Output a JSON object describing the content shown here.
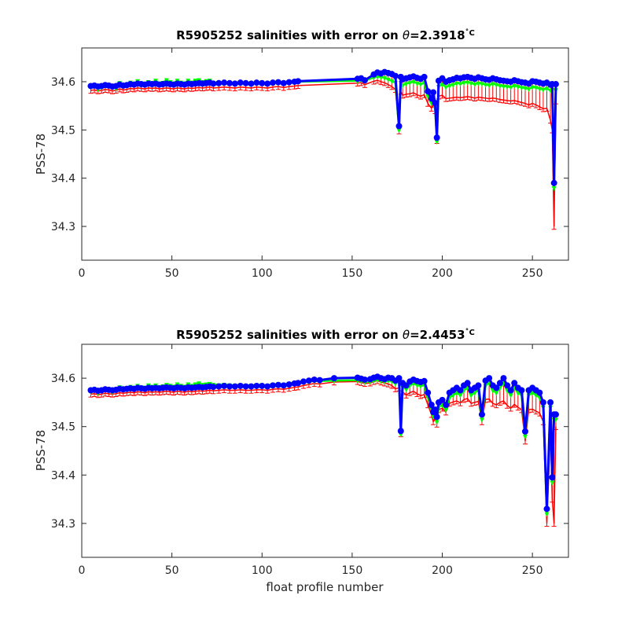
{
  "chart_data": [
    {
      "type": "line",
      "title": "R5905252 salinities with error on θ=2.3918˚C",
      "title_prefix": "R5905252 salinities with error on ",
      "title_theta": "θ",
      "title_suffix": "=2.3918",
      "title_unit": "˚C",
      "xlabel": "",
      "ylabel": "PSS-78",
      "xlim": [
        0,
        270
      ],
      "ylim": [
        34.23,
        34.67
      ],
      "xticks": [
        0,
        50,
        100,
        150,
        200,
        250
      ],
      "yticks": [
        34.3,
        34.4,
        34.5,
        34.6
      ],
      "xtick_labels": [
        "0",
        "50",
        "100",
        "150",
        "200",
        "250"
      ],
      "ytick_labels": [
        "34.3",
        "34.4",
        "34.5",
        "34.6"
      ],
      "grid": false,
      "colors": {
        "salinity": "#0000ff",
        "original": "#00ff00",
        "error": "#ff0000"
      },
      "x": [
        5,
        7,
        9,
        11,
        13,
        15,
        17,
        19,
        21,
        23,
        25,
        27,
        29,
        31,
        33,
        35,
        37,
        39,
        41,
        43,
        45,
        47,
        49,
        51,
        53,
        55,
        57,
        59,
        61,
        63,
        65,
        67,
        69,
        71,
        73,
        76,
        79,
        82,
        85,
        88,
        91,
        94,
        97,
        100,
        103,
        106,
        109,
        112,
        115,
        118,
        120,
        153,
        155,
        157,
        162,
        164,
        166,
        168,
        170,
        172,
        174,
        176,
        177,
        178,
        180,
        182,
        184,
        186,
        188,
        190,
        192,
        194,
        195,
        196,
        197,
        198,
        200,
        202,
        204,
        206,
        208,
        210,
        212,
        214,
        216,
        218,
        220,
        222,
        224,
        226,
        228,
        230,
        232,
        234,
        236,
        238,
        240,
        242,
        244,
        246,
        248,
        250,
        252,
        254,
        256,
        258,
        260,
        261,
        262,
        263
      ],
      "series": [
        {
          "values": [
            34.591,
            34.592,
            34.59,
            34.591,
            34.593,
            34.592,
            34.59,
            34.591,
            34.594,
            34.592,
            34.593,
            34.595,
            34.594,
            34.596,
            34.595,
            34.594,
            34.596,
            34.595,
            34.596,
            34.594,
            34.595,
            34.596,
            34.595,
            34.594,
            34.596,
            34.595,
            34.594,
            34.596,
            34.595,
            34.596,
            34.597,
            34.596,
            34.597,
            34.598,
            34.596,
            34.597,
            34.598,
            34.597,
            34.596,
            34.598,
            34.597,
            34.596,
            34.598,
            34.597,
            34.596,
            34.598,
            34.599,
            34.597,
            34.599,
            34.6,
            34.601,
            34.606,
            34.607,
            34.603,
            34.615,
            34.619,
            34.617,
            34.62,
            34.618,
            34.616,
            34.612,
            34.508,
            34.61,
            34.605,
            34.607,
            34.609,
            34.611,
            34.608,
            34.606,
            34.61,
            34.58,
            34.565,
            34.578,
            34.556,
            34.484,
            34.602,
            34.607,
            34.6,
            34.603,
            34.605,
            34.608,
            34.607,
            34.609,
            34.61,
            34.608,
            34.606,
            34.609,
            34.607,
            34.605,
            34.604,
            34.607,
            34.605,
            34.603,
            34.602,
            34.601,
            34.6,
            34.603,
            34.601,
            34.599,
            34.598,
            34.596,
            34.601,
            34.6,
            34.598,
            34.596,
            34.598,
            34.594,
            34.595,
            34.39,
            34.595
          ]
        },
        {
          "values": [
            34.59,
            34.592,
            34.585,
            34.588,
            34.592,
            34.594,
            34.59,
            34.586,
            34.598,
            34.592,
            34.594,
            34.599,
            34.596,
            34.602,
            34.597,
            34.596,
            34.6,
            34.598,
            34.603,
            34.597,
            34.598,
            34.604,
            34.6,
            34.597,
            34.603,
            34.599,
            34.597,
            34.603,
            34.599,
            34.603,
            34.604,
            34.6,
            34.602,
            34.603,
            34.598,
            34.598,
            34.599,
            34.598,
            34.597,
            34.598,
            34.597,
            34.597,
            34.598,
            34.597,
            34.597,
            34.598,
            34.598,
            34.597,
            34.599,
            34.6,
            34.6,
            34.602,
            34.603,
            34.602,
            34.609,
            34.611,
            34.61,
            34.608,
            34.605,
            34.602,
            34.598,
            34.5,
            34.598,
            34.593,
            34.596,
            34.598,
            34.6,
            34.597,
            34.595,
            34.598,
            34.57,
            34.556,
            34.568,
            34.546,
            34.476,
            34.59,
            34.595,
            34.589,
            34.592,
            34.594,
            34.597,
            34.596,
            34.598,
            34.599,
            34.597,
            34.595,
            34.597,
            34.596,
            34.594,
            34.593,
            34.596,
            34.594,
            34.592,
            34.591,
            34.59,
            34.589,
            34.592,
            34.59,
            34.588,
            34.587,
            34.585,
            34.589,
            34.588,
            34.586,
            34.584,
            34.586,
            34.582,
            34.583,
            34.38,
            34.583
          ]
        },
        {
          "values": [
            34.582,
            34.583,
            34.581,
            34.582,
            34.584,
            34.583,
            34.581,
            34.582,
            34.585,
            34.583,
            34.584,
            34.586,
            34.585,
            34.587,
            34.586,
            34.585,
            34.587,
            34.586,
            34.587,
            34.585,
            34.586,
            34.587,
            34.586,
            34.585,
            34.587,
            34.586,
            34.585,
            34.587,
            34.586,
            34.587,
            34.588,
            34.587,
            34.588,
            34.589,
            34.587,
            34.588,
            34.589,
            34.588,
            34.587,
            34.589,
            34.588,
            34.587,
            34.589,
            34.588,
            34.587,
            34.589,
            34.59,
            34.588,
            34.59,
            34.591,
            34.592,
            34.597,
            34.598,
            34.594,
            34.601,
            34.603,
            34.6,
            34.598,
            34.594,
            34.59,
            34.584,
            34.498,
            34.58,
            34.572,
            34.574,
            34.575,
            34.577,
            34.573,
            34.57,
            34.573,
            34.555,
            34.545,
            34.553,
            34.54,
            34.478,
            34.57,
            34.572,
            34.565,
            34.566,
            34.567,
            34.568,
            34.567,
            34.568,
            34.569,
            34.568,
            34.566,
            34.568,
            34.567,
            34.566,
            34.565,
            34.566,
            34.565,
            34.563,
            34.562,
            34.561,
            34.56,
            34.561,
            34.559,
            34.557,
            34.555,
            34.552,
            34.555,
            34.552,
            34.548,
            34.544,
            34.545,
            34.52,
            34.5,
            34.3,
            34.56
          ]
        }
      ]
    },
    {
      "type": "line",
      "title": "R5905252 salinities with error on θ=2.4453˚C",
      "title_prefix": "R5905252 salinities with error on ",
      "title_theta": "θ",
      "title_suffix": "=2.4453",
      "title_unit": "˚C",
      "xlabel": "float profile number",
      "ylabel": "PSS-78",
      "xlim": [
        0,
        270
      ],
      "ylim": [
        34.23,
        34.67
      ],
      "xticks": [
        0,
        50,
        100,
        150,
        200,
        250
      ],
      "yticks": [
        34.3,
        34.4,
        34.5,
        34.6
      ],
      "xtick_labels": [
        "0",
        "50",
        "100",
        "150",
        "200",
        "250"
      ],
      "ytick_labels": [
        "34.3",
        "34.4",
        "34.5",
        "34.6"
      ],
      "grid": false,
      "colors": {
        "salinity": "#0000ff",
        "original": "#00ff00",
        "error": "#ff0000"
      },
      "x": [
        5,
        7,
        9,
        11,
        13,
        15,
        17,
        19,
        21,
        23,
        25,
        27,
        29,
        31,
        33,
        35,
        37,
        39,
        41,
        43,
        45,
        47,
        49,
        51,
        53,
        55,
        57,
        59,
        61,
        63,
        65,
        67,
        69,
        71,
        73,
        76,
        79,
        82,
        85,
        88,
        91,
        94,
        97,
        100,
        103,
        106,
        109,
        112,
        115,
        118,
        120,
        123,
        126,
        129,
        132,
        140,
        153,
        155,
        157,
        160,
        162,
        164,
        166,
        168,
        170,
        172,
        174,
        176,
        177,
        178,
        180,
        182,
        184,
        186,
        188,
        190,
        192,
        194,
        195,
        196,
        197,
        198,
        200,
        202,
        204,
        206,
        208,
        210,
        212,
        214,
        216,
        218,
        220,
        222,
        224,
        226,
        228,
        230,
        232,
        234,
        236,
        238,
        240,
        242,
        244,
        246,
        248,
        250,
        252,
        254,
        256,
        258,
        260,
        261,
        262,
        263
      ],
      "series": [
        {
          "values": [
            34.575,
            34.576,
            34.574,
            34.575,
            34.577,
            34.576,
            34.575,
            34.576,
            34.578,
            34.577,
            34.578,
            34.579,
            34.578,
            34.58,
            34.579,
            34.578,
            34.58,
            34.579,
            34.58,
            34.579,
            34.58,
            34.581,
            34.58,
            34.579,
            34.581,
            34.58,
            34.579,
            34.581,
            34.58,
            34.581,
            34.582,
            34.581,
            34.582,
            34.583,
            34.582,
            34.583,
            34.584,
            34.583,
            34.583,
            34.584,
            34.583,
            34.583,
            34.584,
            34.584,
            34.583,
            34.585,
            34.586,
            34.585,
            34.587,
            34.589,
            34.59,
            34.593,
            34.595,
            34.597,
            34.596,
            34.6,
            34.601,
            34.599,
            34.597,
            34.598,
            34.601,
            34.603,
            34.6,
            34.598,
            34.601,
            34.6,
            34.595,
            34.6,
            34.491,
            34.59,
            34.585,
            34.593,
            34.597,
            34.594,
            34.592,
            34.594,
            34.57,
            34.545,
            34.53,
            34.535,
            34.52,
            34.55,
            34.555,
            34.545,
            34.57,
            34.575,
            34.58,
            34.575,
            34.585,
            34.59,
            34.575,
            34.58,
            34.585,
            34.525,
            34.595,
            34.6,
            34.585,
            34.58,
            34.59,
            34.6,
            34.585,
            34.575,
            34.59,
            34.58,
            34.575,
            34.49,
            34.575,
            34.58,
            34.575,
            34.57,
            34.55,
            34.33,
            34.55,
            34.395,
            34.525,
            34.525
          ]
        },
        {
          "values": [
            34.572,
            34.575,
            34.57,
            34.573,
            34.578,
            34.575,
            34.572,
            34.576,
            34.582,
            34.577,
            34.58,
            34.583,
            34.58,
            34.585,
            34.582,
            34.58,
            34.586,
            34.583,
            34.586,
            34.582,
            34.584,
            34.587,
            34.585,
            34.583,
            34.588,
            34.585,
            34.583,
            34.588,
            34.585,
            34.588,
            34.59,
            34.587,
            34.588,
            34.589,
            34.587,
            34.586,
            34.587,
            34.586,
            34.585,
            34.586,
            34.585,
            34.585,
            34.586,
            34.586,
            34.585,
            34.587,
            34.588,
            34.587,
            34.589,
            34.59,
            34.591,
            34.592,
            34.593,
            34.594,
            34.594,
            34.595,
            34.596,
            34.594,
            34.592,
            34.593,
            34.595,
            34.597,
            34.595,
            34.593,
            34.595,
            34.594,
            34.589,
            34.594,
            34.484,
            34.582,
            34.577,
            34.585,
            34.589,
            34.586,
            34.584,
            34.586,
            34.561,
            34.536,
            34.521,
            34.526,
            34.51,
            34.54,
            34.545,
            34.535,
            34.56,
            34.565,
            34.57,
            34.565,
            34.575,
            34.58,
            34.565,
            34.57,
            34.575,
            34.515,
            34.585,
            34.59,
            34.575,
            34.57,
            34.58,
            34.59,
            34.575,
            34.565,
            34.58,
            34.57,
            34.565,
            34.48,
            34.565,
            34.57,
            34.565,
            34.56,
            34.54,
            34.32,
            34.54,
            34.385,
            34.515,
            34.515
          ]
        },
        {
          "values": [
            34.567,
            34.568,
            34.566,
            34.567,
            34.569,
            34.568,
            34.567,
            34.568,
            34.57,
            34.569,
            34.57,
            34.571,
            34.57,
            34.572,
            34.571,
            34.57,
            34.572,
            34.571,
            34.572,
            34.571,
            34.572,
            34.573,
            34.572,
            34.571,
            34.573,
            34.572,
            34.571,
            34.573,
            34.572,
            34.573,
            34.574,
            34.573,
            34.574,
            34.575,
            34.574,
            34.575,
            34.576,
            34.575,
            34.575,
            34.576,
            34.575,
            34.575,
            34.576,
            34.576,
            34.575,
            34.577,
            34.578,
            34.577,
            34.579,
            34.581,
            34.582,
            34.585,
            34.587,
            34.589,
            34.588,
            34.592,
            34.593,
            34.591,
            34.589,
            34.59,
            34.593,
            34.595,
            34.592,
            34.59,
            34.588,
            34.585,
            34.578,
            34.58,
            34.485,
            34.572,
            34.565,
            34.57,
            34.573,
            34.568,
            34.564,
            34.566,
            34.545,
            34.525,
            34.51,
            34.518,
            34.505,
            34.535,
            34.538,
            34.53,
            34.548,
            34.551,
            34.553,
            34.549,
            34.556,
            34.558,
            34.548,
            34.55,
            34.552,
            34.51,
            34.556,
            34.557,
            34.548,
            34.545,
            34.55,
            34.553,
            34.544,
            34.538,
            34.546,
            34.54,
            34.535,
            34.47,
            34.535,
            34.536,
            34.532,
            34.528,
            34.51,
            34.3,
            34.49,
            34.35,
            34.3,
            34.5
          ]
        }
      ]
    }
  ]
}
